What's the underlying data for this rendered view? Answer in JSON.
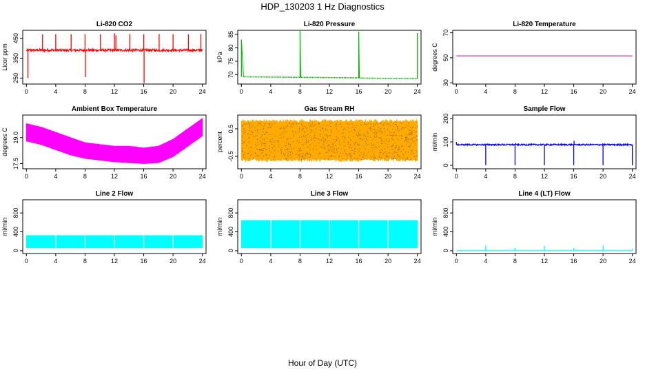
{
  "figure": {
    "title": "HDP_130203  1 Hz Diagnostics",
    "xlabel": "Hour of Day (UTC)"
  },
  "chart_data": [
    {
      "type": "line",
      "title": "Li-820 CO2",
      "ylabel": "Licor ppm",
      "color": "#ff0000",
      "xlim": [
        -0.5,
        24.5
      ],
      "ylim": [
        220,
        490
      ],
      "xticks": [
        "0",
        "4",
        "8",
        "12",
        "16",
        "20",
        "24"
      ],
      "yticks": [
        "250",
        "350",
        "450"
      ],
      "baseline": 390,
      "noise": 6,
      "spikes": [
        [
          0.2,
          250
        ],
        [
          2.2,
          470
        ],
        [
          4.0,
          470
        ],
        [
          6.1,
          470
        ],
        [
          8.0,
          470
        ],
        [
          8.05,
          255
        ],
        [
          10.1,
          470
        ],
        [
          12.0,
          475
        ],
        [
          12.2,
          465
        ],
        [
          14.1,
          470
        ],
        [
          16.0,
          470
        ],
        [
          16.05,
          225
        ],
        [
          18.1,
          470
        ],
        [
          20.0,
          470
        ],
        [
          22.1,
          470
        ],
        [
          23.8,
          470
        ]
      ]
    },
    {
      "type": "line",
      "title": "Li-820 Pressure",
      "ylabel": "kPa",
      "color": "#00bb00",
      "xlim": [
        -0.5,
        24.5
      ],
      "ylim": [
        66.5,
        86.5
      ],
      "xticks": [
        "0",
        "4",
        "8",
        "12",
        "16",
        "20",
        "24"
      ],
      "yticks": [
        "70",
        "75",
        "80",
        "85"
      ],
      "segments": [
        [
          0.3,
          8.0,
          69.2,
          69.0
        ],
        [
          8.1,
          16.0,
          69.0,
          68.8
        ],
        [
          16.1,
          24.0,
          68.7,
          68.5
        ]
      ],
      "spikes": [
        [
          0.0,
          83.0
        ],
        [
          8.0,
          86.5
        ],
        [
          16.0,
          86.0
        ],
        [
          24.0,
          85.5
        ]
      ]
    },
    {
      "type": "line",
      "title": "Li-820 Temperature",
      "ylabel": "degrees C",
      "color": "#cc0088",
      "xlim": [
        -0.5,
        24.5
      ],
      "ylim": [
        29,
        72
      ],
      "xticks": [
        "0",
        "4",
        "8",
        "12",
        "16",
        "20",
        "24"
      ],
      "yticks": [
        "30",
        "50",
        "70"
      ],
      "constant": 51.5
    },
    {
      "type": "area",
      "title": "Ambient Box Temperature",
      "ylabel": "degrees C",
      "color": "#ff00ff",
      "xlim": [
        -0.5,
        24.5
      ],
      "ylim": [
        17.2,
        20.3
      ],
      "xticks": [
        "0",
        "4",
        "8",
        "12",
        "16",
        "20",
        "24"
      ],
      "yticks": [
        "17.5",
        "19.0"
      ],
      "band_x": [
        0,
        2,
        4,
        6,
        8,
        10,
        12,
        14,
        16,
        18,
        20,
        22,
        24
      ],
      "band_low": [
        18.8,
        18.6,
        18.3,
        18.0,
        17.8,
        17.7,
        17.6,
        17.55,
        17.5,
        17.55,
        17.9,
        18.5,
        19.1
      ],
      "band_high": [
        19.8,
        19.6,
        19.3,
        19.0,
        18.7,
        18.6,
        18.5,
        18.5,
        18.4,
        18.5,
        18.9,
        19.5,
        20.1
      ]
    },
    {
      "type": "area",
      "title": "Gas Stream RH",
      "ylabel": "percent",
      "color": "#ffaa00",
      "dotcolor": "#8a5a00",
      "xlim": [
        -0.5,
        24.5
      ],
      "ylim": [
        -0.95,
        1.0
      ],
      "xticks": [
        "0",
        "4",
        "8",
        "12",
        "16",
        "20",
        "24"
      ],
      "yticks": [
        "-0.5",
        "0.5"
      ],
      "band_x": [
        0,
        24
      ],
      "band_low": [
        -0.6,
        -0.6
      ],
      "band_high": [
        0.75,
        0.75
      ],
      "noise": 0.12
    },
    {
      "type": "line",
      "title": "Sample Flow",
      "ylabel": "ml/min",
      "color": "#0000ee",
      "xlim": [
        -0.5,
        24.5
      ],
      "ylim": [
        -15,
        215
      ],
      "xticks": [
        "0",
        "4",
        "8",
        "12",
        "16",
        "20",
        "24"
      ],
      "yticks": [
        "0",
        "100",
        "200"
      ],
      "baseline": 88,
      "noise": 3,
      "spikes": [
        [
          0.0,
          100
        ],
        [
          4.0,
          0
        ],
        [
          8.0,
          0
        ],
        [
          12.0,
          0
        ],
        [
          16.0,
          0
        ],
        [
          20.0,
          0
        ],
        [
          24.0,
          0
        ],
        [
          8.05,
          95
        ],
        [
          16.05,
          105
        ]
      ]
    },
    {
      "type": "area",
      "title": "Line 2 Flow",
      "ylabel": "ml/min",
      "color": "#00ffff",
      "xlim": [
        -0.5,
        24.5
      ],
      "ylim": [
        -60,
        1080
      ],
      "xticks": [
        "0",
        "4",
        "8",
        "12",
        "16",
        "20",
        "24"
      ],
      "yticks": [
        "0",
        "400",
        "800"
      ],
      "band_x": [
        0,
        24
      ],
      "band_low": [
        60,
        60
      ],
      "band_high": [
        320,
        320
      ],
      "gaps": [
        4,
        8,
        12,
        16,
        20
      ]
    },
    {
      "type": "area",
      "title": "Line 3 Flow",
      "ylabel": "ml/min",
      "color": "#00ffff",
      "xlim": [
        -0.5,
        24.5
      ],
      "ylim": [
        -60,
        1080
      ],
      "xticks": [
        "0",
        "4",
        "8",
        "12",
        "16",
        "20",
        "24"
      ],
      "yticks": [
        "0",
        "400",
        "800"
      ],
      "band_x": [
        0,
        24
      ],
      "band_low": [
        60,
        60
      ],
      "band_high": [
        640,
        640
      ],
      "gaps": [
        4,
        8,
        12,
        16,
        20
      ]
    },
    {
      "type": "line",
      "title": "Line 4 (LT) Flow",
      "ylabel": "ml/min",
      "color": "#00ffff",
      "xlim": [
        -0.5,
        24.5
      ],
      "ylim": [
        -60,
        1080
      ],
      "xticks": [
        "0",
        "4",
        "8",
        "12",
        "16",
        "20",
        "24"
      ],
      "yticks": [
        "0",
        "400",
        "800"
      ],
      "baseline": 0,
      "spikes": [
        [
          4.0,
          110
        ],
        [
          8.0,
          60
        ],
        [
          12.0,
          100
        ],
        [
          16.0,
          60
        ],
        [
          20.0,
          110
        ],
        [
          24.0,
          40
        ]
      ]
    }
  ]
}
